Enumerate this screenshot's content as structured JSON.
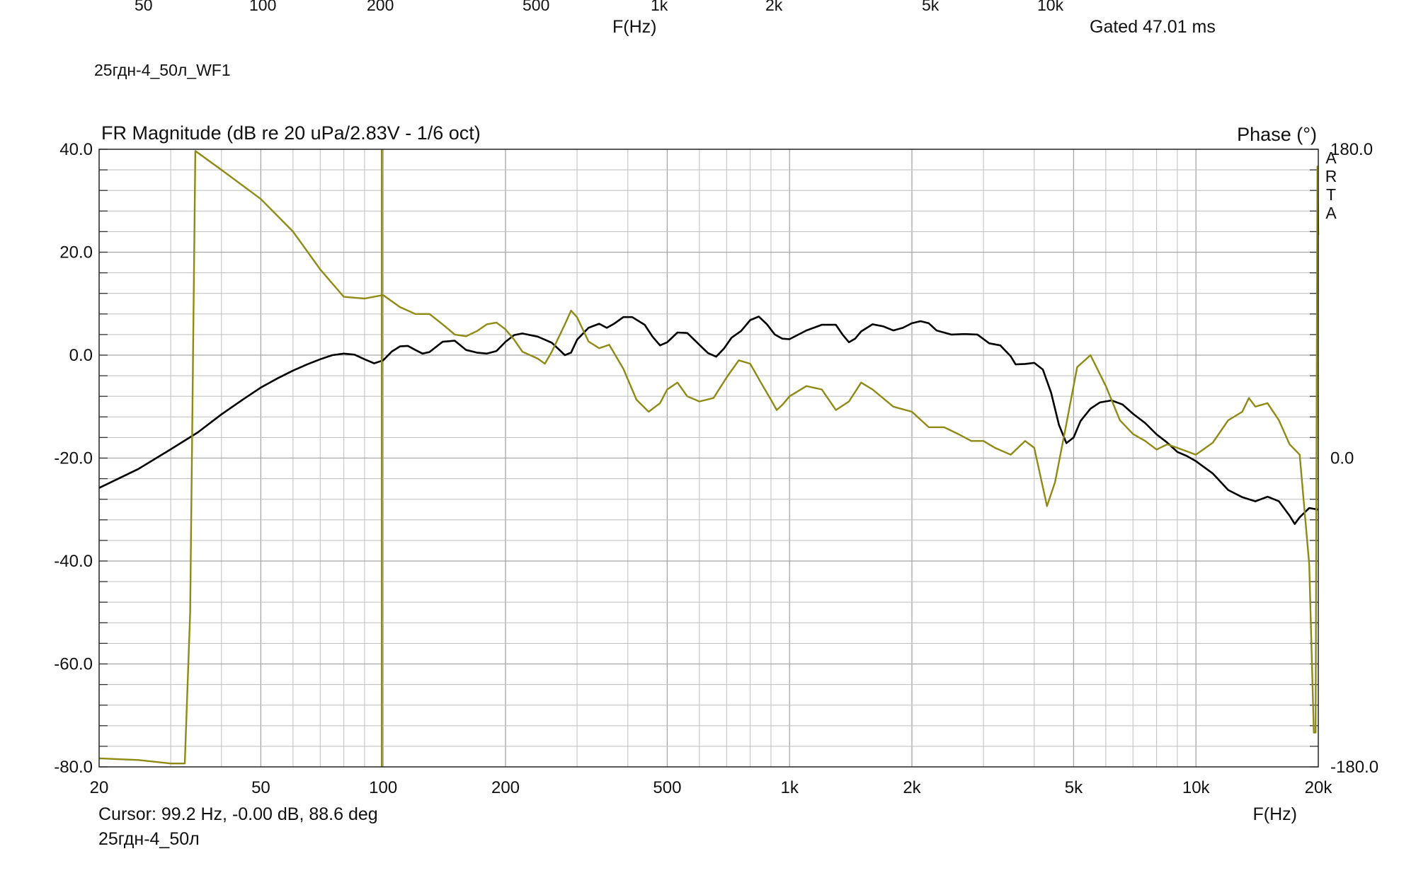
{
  "top_strip": {
    "tick_labels": [
      "50",
      "100",
      "200",
      "500",
      "1k",
      "2k",
      "5k",
      "10k"
    ],
    "x_axis_label": "F(Hz)",
    "gate_text": "Gated 47.01 ms"
  },
  "file_title": "25гдн-4_50л_WF1",
  "cursor_text": "Cursor: 99.2 Hz, -0.00 dB, 88.6 deg",
  "file_name": "25гдн-4_50л",
  "watermark": "ARTA",
  "colors": {
    "magnitude": "#000000",
    "phase": "#8f8a14",
    "cursor": "#8f8a14"
  },
  "chart_data": {
    "type": "line",
    "title": "FR Magnitude (dB re 20 uPa/2.83V - 1/6 oct)",
    "right_title": "Phase (°)",
    "xlabel": "F(Hz)",
    "x_scale": "log",
    "xlim": [
      20,
      20000
    ],
    "ylim": [
      -80,
      40
    ],
    "y2lim": [
      -180,
      180
    ],
    "x_ticks": [
      20,
      50,
      100,
      200,
      500,
      1000,
      2000,
      5000,
      10000,
      20000
    ],
    "x_tick_labels": [
      "20",
      "50",
      "100",
      "200",
      "500",
      "1k",
      "2k",
      "5k",
      "10k",
      "20k"
    ],
    "y_ticks": [
      40,
      20,
      0,
      -20,
      -40,
      -60,
      -80
    ],
    "y_tick_labels": [
      "40.0",
      "20.0",
      "0.0",
      "-20.0",
      "-40.0",
      "-60.0",
      "-80.0"
    ],
    "y2_ticks": [
      180,
      0,
      -180
    ],
    "y2_tick_labels": [
      "180.0",
      "0.0",
      "-180.0"
    ],
    "grid": true,
    "cursor_x": 99.2,
    "series": [
      {
        "axis": "left",
        "points": [
          [
            20,
            -25.8
          ],
          [
            25,
            -22.1
          ],
          [
            30,
            -18.3
          ],
          [
            35,
            -15.0
          ],
          [
            40,
            -11.5
          ],
          [
            45,
            -8.7
          ],
          [
            50,
            -6.3
          ],
          [
            55,
            -4.5
          ],
          [
            60,
            -3.0
          ],
          [
            65,
            -1.8
          ],
          [
            70,
            -0.8
          ],
          [
            75,
            0.0
          ],
          [
            80,
            0.3
          ],
          [
            85,
            0.1
          ],
          [
            90,
            -0.8
          ],
          [
            95,
            -1.6
          ],
          [
            100,
            -1.0
          ],
          [
            105,
            0.7
          ],
          [
            110,
            1.7
          ],
          [
            115,
            1.8
          ],
          [
            120,
            1.0
          ],
          [
            125,
            0.3
          ],
          [
            130,
            0.6
          ],
          [
            140,
            2.6
          ],
          [
            150,
            2.8
          ],
          [
            160,
            1.0
          ],
          [
            170,
            0.5
          ],
          [
            180,
            0.3
          ],
          [
            190,
            0.8
          ],
          [
            200,
            2.6
          ],
          [
            210,
            3.9
          ],
          [
            220,
            4.2
          ],
          [
            240,
            3.6
          ],
          [
            260,
            2.4
          ],
          [
            270,
            1.2
          ],
          [
            280,
            0.0
          ],
          [
            290,
            0.5
          ],
          [
            300,
            3.0
          ],
          [
            320,
            5.3
          ],
          [
            340,
            6.1
          ],
          [
            355,
            5.3
          ],
          [
            370,
            6.1
          ],
          [
            390,
            7.4
          ],
          [
            410,
            7.4
          ],
          [
            440,
            5.9
          ],
          [
            460,
            3.6
          ],
          [
            480,
            1.9
          ],
          [
            500,
            2.5
          ],
          [
            530,
            4.4
          ],
          [
            560,
            4.3
          ],
          [
            600,
            2.0
          ],
          [
            630,
            0.4
          ],
          [
            660,
            -0.3
          ],
          [
            690,
            1.3
          ],
          [
            720,
            3.4
          ],
          [
            760,
            4.7
          ],
          [
            800,
            6.8
          ],
          [
            840,
            7.5
          ],
          [
            880,
            6.0
          ],
          [
            920,
            4.0
          ],
          [
            960,
            3.2
          ],
          [
            1000,
            3.1
          ],
          [
            1100,
            4.8
          ],
          [
            1200,
            5.9
          ],
          [
            1300,
            5.9
          ],
          [
            1350,
            4.0
          ],
          [
            1400,
            2.5
          ],
          [
            1450,
            3.2
          ],
          [
            1500,
            4.6
          ],
          [
            1600,
            6.0
          ],
          [
            1700,
            5.6
          ],
          [
            1800,
            4.8
          ],
          [
            1900,
            5.3
          ],
          [
            2000,
            6.2
          ],
          [
            2100,
            6.6
          ],
          [
            2200,
            6.2
          ],
          [
            2300,
            4.8
          ],
          [
            2500,
            4.0
          ],
          [
            2700,
            4.1
          ],
          [
            2900,
            4.0
          ],
          [
            3100,
            2.3
          ],
          [
            3300,
            1.9
          ],
          [
            3500,
            -0.2
          ],
          [
            3600,
            -1.8
          ],
          [
            3800,
            -1.7
          ],
          [
            4000,
            -1.5
          ],
          [
            4200,
            -2.8
          ],
          [
            4400,
            -7.3
          ],
          [
            4600,
            -13.5
          ],
          [
            4800,
            -17.1
          ],
          [
            5000,
            -16.0
          ],
          [
            5200,
            -12.8
          ],
          [
            5500,
            -10.4
          ],
          [
            5800,
            -9.2
          ],
          [
            6200,
            -8.8
          ],
          [
            6600,
            -9.6
          ],
          [
            7000,
            -11.4
          ],
          [
            7500,
            -13.2
          ],
          [
            8000,
            -15.4
          ],
          [
            8500,
            -17.0
          ],
          [
            9000,
            -18.8
          ],
          [
            9500,
            -19.6
          ],
          [
            10000,
            -20.6
          ],
          [
            11000,
            -23.0
          ],
          [
            12000,
            -26.2
          ],
          [
            13000,
            -27.6
          ],
          [
            14000,
            -28.4
          ],
          [
            15000,
            -27.5
          ],
          [
            16000,
            -28.4
          ],
          [
            17000,
            -31.2
          ],
          [
            17500,
            -32.8
          ],
          [
            18000,
            -31.5
          ],
          [
            19000,
            -29.7
          ],
          [
            20000,
            -30.0
          ]
        ]
      },
      {
        "axis": "right",
        "points": [
          [
            20,
            -175
          ],
          [
            25,
            -176
          ],
          [
            30,
            -178
          ],
          [
            32.5,
            -178
          ],
          [
            33.5,
            -90
          ],
          [
            34.5,
            179
          ],
          [
            40,
            168
          ],
          [
            50,
            151
          ],
          [
            60,
            132
          ],
          [
            70,
            110
          ],
          [
            80,
            94
          ],
          [
            90,
            93
          ],
          [
            100,
            95
          ],
          [
            110,
            88
          ],
          [
            120,
            84
          ],
          [
            130,
            84
          ],
          [
            140,
            78
          ],
          [
            150,
            72
          ],
          [
            160,
            71
          ],
          [
            170,
            74
          ],
          [
            180,
            78
          ],
          [
            190,
            79
          ],
          [
            200,
            75
          ],
          [
            210,
            69
          ],
          [
            220,
            62
          ],
          [
            240,
            58
          ],
          [
            250,
            55
          ],
          [
            260,
            62
          ],
          [
            280,
            78
          ],
          [
            290,
            86
          ],
          [
            300,
            82
          ],
          [
            320,
            68
          ],
          [
            340,
            64
          ],
          [
            360,
            66
          ],
          [
            390,
            52
          ],
          [
            420,
            34
          ],
          [
            450,
            27
          ],
          [
            480,
            32
          ],
          [
            500,
            40
          ],
          [
            530,
            44
          ],
          [
            560,
            36
          ],
          [
            600,
            33
          ],
          [
            650,
            35
          ],
          [
            700,
            47
          ],
          [
            750,
            57
          ],
          [
            800,
            55
          ],
          [
            850,
            44
          ],
          [
            900,
            34
          ],
          [
            930,
            28
          ],
          [
            960,
            31
          ],
          [
            1000,
            36
          ],
          [
            1100,
            42
          ],
          [
            1200,
            40
          ],
          [
            1300,
            28
          ],
          [
            1400,
            33
          ],
          [
            1500,
            44
          ],
          [
            1600,
            40
          ],
          [
            1800,
            30
          ],
          [
            2000,
            27
          ],
          [
            2200,
            18
          ],
          [
            2400,
            18
          ],
          [
            2600,
            14
          ],
          [
            2800,
            10
          ],
          [
            3000,
            10
          ],
          [
            3200,
            6
          ],
          [
            3500,
            2
          ],
          [
            3800,
            10
          ],
          [
            4000,
            6
          ],
          [
            4300,
            -28
          ],
          [
            4500,
            -14
          ],
          [
            4800,
            20
          ],
          [
            5100,
            53
          ],
          [
            5500,
            60
          ],
          [
            6000,
            42
          ],
          [
            6500,
            22
          ],
          [
            7000,
            14
          ],
          [
            7500,
            10
          ],
          [
            8000,
            5
          ],
          [
            8500,
            8
          ],
          [
            9000,
            6
          ],
          [
            10000,
            2
          ],
          [
            11000,
            9
          ],
          [
            12000,
            22
          ],
          [
            13000,
            27
          ],
          [
            13500,
            35
          ],
          [
            14000,
            30
          ],
          [
            15000,
            32
          ],
          [
            16000,
            22
          ],
          [
            17000,
            8
          ],
          [
            18000,
            2
          ],
          [
            19000,
            -62
          ],
          [
            19500,
            -160
          ],
          [
            19700,
            -160
          ],
          [
            19900,
            170
          ],
          [
            20000,
            130
          ]
        ]
      }
    ]
  }
}
